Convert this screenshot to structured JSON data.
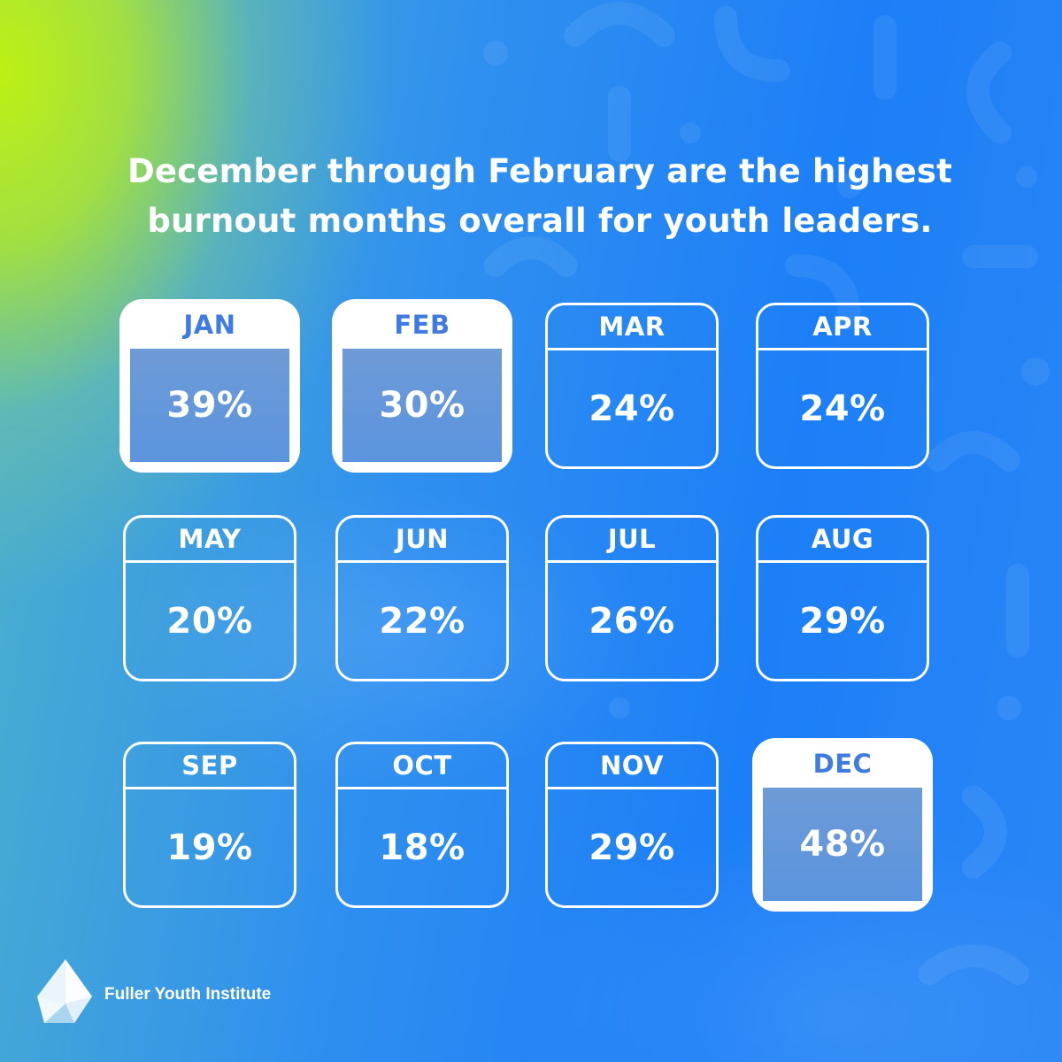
{
  "header": {
    "title": "December through February are the highest burnout months overall for youth leaders."
  },
  "chart_data": {
    "type": "table",
    "title": "December through February are the highest burnout months overall for youth leaders.",
    "categories": [
      "JAN",
      "FEB",
      "MAR",
      "APR",
      "MAY",
      "JUN",
      "JUL",
      "AUG",
      "SEP",
      "OCT",
      "NOV",
      "DEC"
    ],
    "values": [
      39,
      30,
      24,
      24,
      20,
      22,
      26,
      29,
      19,
      18,
      29,
      48
    ],
    "value_labels": [
      "39%",
      "30%",
      "24%",
      "24%",
      "20%",
      "22%",
      "26%",
      "29%",
      "19%",
      "18%",
      "29%",
      "48%"
    ],
    "highlighted": [
      "JAN",
      "FEB",
      "DEC"
    ]
  },
  "footer": {
    "brand": "Fuller Youth Institute",
    "logo_icon": "crystal-drop-logo-icon"
  },
  "colors": {
    "highlight_text": "#3f7be0",
    "highlight_fill": "#ffffff",
    "background_blue": "#1c7ff7",
    "background_lime": "#bef014"
  }
}
